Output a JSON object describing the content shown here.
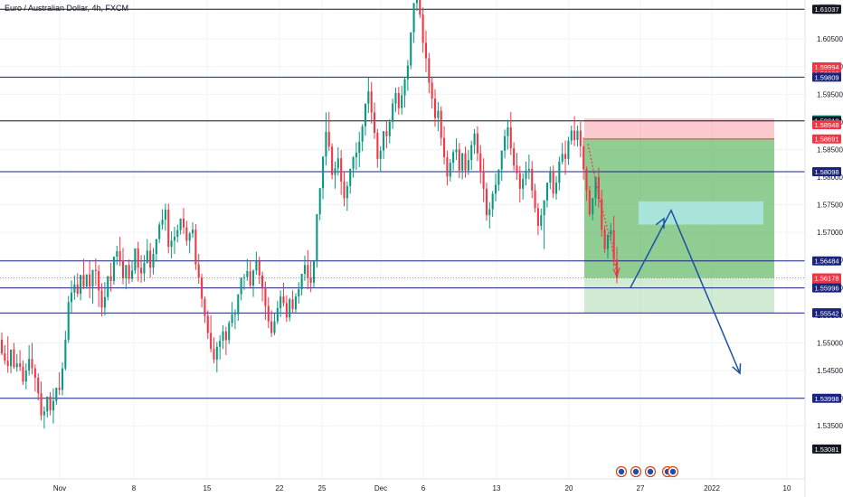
{
  "chart_data": {
    "type": "candlestick",
    "title": "Euro / Australian Dollar, 4h, FXCM",
    "currency": "AUD",
    "y_ticks": [
      "1.60500",
      "1.60000",
      "1.59500",
      "1.59000",
      "1.58500",
      "1.58000",
      "1.57500",
      "1.57000",
      "1.56500",
      "1.56000",
      "1.55500",
      "1.55000",
      "1.54500",
      "1.54000",
      "1.53500"
    ],
    "x_ticks": [
      "Nov",
      "8",
      "15",
      "22",
      "25",
      "Dec",
      "6",
      "13",
      "20",
      "27",
      "2022",
      "10"
    ],
    "ylim": [
      1.5315,
      1.6125
    ],
    "horizontal_lines": [
      {
        "price": 1.61037,
        "label": "1.61037",
        "color": "#131722"
      },
      {
        "price": 1.59809,
        "label": "1.59809",
        "color": "#1a237e"
      },
      {
        "price": 1.59018,
        "label": "1.59018",
        "color": "#131722"
      },
      {
        "price": 1.58098,
        "label": "1.58098",
        "color": "#1a237e"
      },
      {
        "price": 1.56484,
        "label": "1.56484",
        "color": "#1a237e"
      },
      {
        "price": 1.55996,
        "label": "1.55996",
        "color": "#1a237e"
      },
      {
        "price": 1.55542,
        "label": "1.55542",
        "color": "#1a237e"
      },
      {
        "price": 1.53998,
        "label": "1.53998",
        "color": "#1a237e"
      }
    ],
    "price_labels": [
      {
        "price": 1.61037,
        "text": "1.61037",
        "bg": "#131722"
      },
      {
        "price": 1.59994,
        "text": "1.59994",
        "bg": "#f23645"
      },
      {
        "price": 1.59868,
        "text": "1.59868",
        "bg": "#f23645"
      },
      {
        "price": 1.59809,
        "text": "1.59809",
        "bg": "#1a237e"
      },
      {
        "price": 1.59037,
        "text": "1.59037",
        "bg": "#089981"
      },
      {
        "price": 1.59018,
        "text": "1.59018",
        "bg": "#131722"
      },
      {
        "price": 1.58948,
        "text": "1.58948",
        "bg": "#f23645"
      },
      {
        "price": 1.58691,
        "text": "1.58691",
        "bg": "#f23645"
      },
      {
        "price": 1.58098,
        "text": "1.58098",
        "bg": "#1a237e"
      },
      {
        "price": 1.56484,
        "text": "1.56484",
        "bg": "#1a237e"
      },
      {
        "price": 1.56178,
        "text": "1.56178",
        "bg": "#f23645",
        "sub": "01:27:40"
      },
      {
        "price": 1.55996,
        "text": "1.55996",
        "bg": "#1a237e"
      },
      {
        "price": 1.55548,
        "text": "1.55548",
        "bg": "#089981"
      },
      {
        "price": 1.55542,
        "text": "1.55542",
        "bg": "#1a237e"
      },
      {
        "price": 1.53998,
        "text": "1.53998",
        "bg": "#1a237e"
      },
      {
        "price": 1.53081,
        "text": "1.53081",
        "bg": "#131722"
      }
    ],
    "current_price": 1.56178,
    "short_position": {
      "entry": 1.58691,
      "stop": 1.58948,
      "target": 1.55548
    },
    "highlight_zone": {
      "top": 1.57561,
      "bottom": 1.57142
    },
    "candles": [
      [
        1.5506,
        1.5519,
        1.5481,
        1.5478
      ],
      [
        1.5481,
        1.5496,
        1.5468,
        1.5461
      ],
      [
        1.5468,
        1.5512,
        1.5458,
        1.5446
      ],
      [
        1.5458,
        1.5483,
        1.5488,
        1.5445
      ],
      [
        1.5488,
        1.55,
        1.5456,
        1.5453
      ],
      [
        1.5456,
        1.548,
        1.5463,
        1.5448
      ],
      [
        1.5463,
        1.5487,
        1.5457,
        1.5449
      ],
      [
        1.5457,
        1.5468,
        1.543,
        1.5424
      ],
      [
        1.543,
        1.5463,
        1.545,
        1.5416
      ],
      [
        1.545,
        1.5496,
        1.5471,
        1.5441
      ],
      [
        1.5471,
        1.55,
        1.5454,
        1.5443
      ],
      [
        1.5454,
        1.5461,
        1.5437,
        1.5412
      ],
      [
        1.5437,
        1.5445,
        1.5409,
        1.5396
      ],
      [
        1.5409,
        1.543,
        1.5369,
        1.536
      ],
      [
        1.5369,
        1.5385,
        1.5376,
        1.5345
      ],
      [
        1.5376,
        1.5395,
        1.5403,
        1.5365
      ],
      [
        1.5403,
        1.5411,
        1.5378,
        1.5369
      ],
      [
        1.5378,
        1.5418,
        1.5395,
        1.5354
      ],
      [
        1.5395,
        1.5409,
        1.5419,
        1.5388
      ],
      [
        1.5419,
        1.5447,
        1.5415,
        1.5406
      ],
      [
        1.5415,
        1.5465,
        1.5454,
        1.5405
      ],
      [
        1.5454,
        1.5522,
        1.5506,
        1.545
      ],
      [
        1.5506,
        1.5585,
        1.5574,
        1.55
      ],
      [
        1.5574,
        1.5613,
        1.5591,
        1.5554
      ],
      [
        1.5591,
        1.5622,
        1.5606,
        1.5578
      ],
      [
        1.5606,
        1.5626,
        1.5589,
        1.5583
      ],
      [
        1.5589,
        1.5611,
        1.5623,
        1.5577
      ],
      [
        1.5623,
        1.5652,
        1.5602,
        1.5597
      ],
      [
        1.5602,
        1.562,
        1.5624,
        1.5598
      ],
      [
        1.5624,
        1.5648,
        1.5602,
        1.5581
      ],
      [
        1.5602,
        1.5632,
        1.5632,
        1.5571
      ],
      [
        1.5632,
        1.5653,
        1.563,
        1.5603
      ],
      [
        1.563,
        1.5641,
        1.5595,
        1.5565
      ],
      [
        1.5595,
        1.5608,
        1.5564,
        1.5548
      ],
      [
        1.5564,
        1.561,
        1.5583,
        1.555
      ],
      [
        1.5583,
        1.5604,
        1.5621,
        1.5577
      ],
      [
        1.5621,
        1.5645,
        1.5612,
        1.5593
      ],
      [
        1.5612,
        1.5648,
        1.5656,
        1.5605
      ],
      [
        1.5656,
        1.5676,
        1.5666,
        1.5641
      ],
      [
        1.5666,
        1.5692,
        1.5649,
        1.5639
      ],
      [
        1.5649,
        1.5672,
        1.5617,
        1.5606
      ],
      [
        1.5617,
        1.5636,
        1.5641,
        1.5597
      ],
      [
        1.5641,
        1.5651,
        1.5616,
        1.5607
      ],
      [
        1.5616,
        1.5649,
        1.5631,
        1.561
      ],
      [
        1.5631,
        1.5661,
        1.5671,
        1.5625
      ],
      [
        1.5671,
        1.5683,
        1.5636,
        1.5611
      ],
      [
        1.5636,
        1.5659,
        1.5626,
        1.5609
      ],
      [
        1.5626,
        1.5659,
        1.5645,
        1.5611
      ],
      [
        1.5645,
        1.5688,
        1.5667,
        1.5643
      ],
      [
        1.5667,
        1.5681,
        1.5636,
        1.5618
      ],
      [
        1.5636,
        1.5672,
        1.5661,
        1.5624
      ],
      [
        1.5661,
        1.5675,
        1.5688,
        1.5647
      ],
      [
        1.5688,
        1.5719,
        1.5714,
        1.5681
      ],
      [
        1.5714,
        1.5742,
        1.5723,
        1.5705
      ],
      [
        1.5723,
        1.5752,
        1.5741,
        1.5703
      ],
      [
        1.5741,
        1.5752,
        1.5674,
        1.5662
      ],
      [
        1.5674,
        1.5702,
        1.5685,
        1.5653
      ],
      [
        1.5685,
        1.571,
        1.5692,
        1.5661
      ],
      [
        1.5692,
        1.5714,
        1.5704,
        1.5682
      ],
      [
        1.5704,
        1.5723,
        1.5725,
        1.5696
      ],
      [
        1.5725,
        1.5744,
        1.5709,
        1.5697
      ],
      [
        1.5709,
        1.5721,
        1.5685,
        1.5676
      ],
      [
        1.5685,
        1.5701,
        1.5698,
        1.5662
      ],
      [
        1.5698,
        1.5718,
        1.5705,
        1.569
      ],
      [
        1.5705,
        1.5715,
        1.5642,
        1.5632
      ],
      [
        1.5642,
        1.5661,
        1.5618,
        1.5607
      ],
      [
        1.5618,
        1.5625,
        1.558,
        1.5564
      ],
      [
        1.558,
        1.5584,
        1.5549,
        1.5536
      ],
      [
        1.5549,
        1.5559,
        1.5518,
        1.5507
      ],
      [
        1.5518,
        1.555,
        1.5489,
        1.5483
      ],
      [
        1.5489,
        1.551,
        1.547,
        1.5463
      ],
      [
        1.547,
        1.5502,
        1.5493,
        1.5447
      ],
      [
        1.5493,
        1.5514,
        1.5504,
        1.547
      ],
      [
        1.5504,
        1.5532,
        1.5521,
        1.5489
      ],
      [
        1.5521,
        1.5529,
        1.5505,
        1.5478
      ],
      [
        1.5505,
        1.554,
        1.5536,
        1.5498
      ],
      [
        1.5536,
        1.5574,
        1.5552,
        1.5529
      ],
      [
        1.5552,
        1.5561,
        1.5552,
        1.5525
      ],
      [
        1.5552,
        1.5578,
        1.5588,
        1.554
      ],
      [
        1.5588,
        1.5617,
        1.5618,
        1.5577
      ],
      [
        1.5618,
        1.5625,
        1.5619,
        1.5596
      ],
      [
        1.5619,
        1.5652,
        1.563,
        1.5612
      ],
      [
        1.563,
        1.5647,
        1.5604,
        1.5598
      ],
      [
        1.5604,
        1.5633,
        1.5631,
        1.5583
      ],
      [
        1.5631,
        1.5665,
        1.5648,
        1.5623
      ],
      [
        1.5648,
        1.5656,
        1.5622,
        1.5607
      ],
      [
        1.5622,
        1.5629,
        1.5601,
        1.5575
      ],
      [
        1.5601,
        1.5611,
        1.5567,
        1.5542
      ],
      [
        1.5567,
        1.5583,
        1.5539,
        1.5527
      ],
      [
        1.5539,
        1.5559,
        1.5518,
        1.5511
      ],
      [
        1.5518,
        1.5553,
        1.5539,
        1.5514
      ],
      [
        1.5539,
        1.5576,
        1.5563,
        1.5534
      ],
      [
        1.5563,
        1.5595,
        1.5584,
        1.5547
      ],
      [
        1.5584,
        1.5609,
        1.5572,
        1.5566
      ],
      [
        1.5572,
        1.5586,
        1.5546,
        1.5538
      ],
      [
        1.5546,
        1.5582,
        1.5579,
        1.5539
      ],
      [
        1.5579,
        1.5595,
        1.5561,
        1.5554
      ],
      [
        1.5561,
        1.559,
        1.5584,
        1.5555
      ],
      [
        1.5584,
        1.561,
        1.5597,
        1.5571
      ],
      [
        1.5597,
        1.5619,
        1.5625,
        1.5586
      ],
      [
        1.5625,
        1.5658,
        1.5641,
        1.5612
      ],
      [
        1.5641,
        1.5668,
        1.5618,
        1.5597
      ],
      [
        1.5618,
        1.5647,
        1.5609,
        1.5592
      ],
      [
        1.5609,
        1.5633,
        1.5648,
        1.5599
      ],
      [
        1.5648,
        1.5679,
        1.5733,
        1.5636
      ],
      [
        1.5733,
        1.5769,
        1.578,
        1.5722
      ],
      [
        1.578,
        1.5838,
        1.5837,
        1.576
      ],
      [
        1.5837,
        1.5917,
        1.5882,
        1.5821
      ],
      [
        1.5882,
        1.5918,
        1.5855,
        1.5847
      ],
      [
        1.5855,
        1.5861,
        1.5804,
        1.5796
      ],
      [
        1.5804,
        1.5828,
        1.5816,
        1.5779
      ],
      [
        1.5816,
        1.5854,
        1.5834,
        1.5803
      ],
      [
        1.5834,
        1.5849,
        1.5792,
        1.5768
      ],
      [
        1.5792,
        1.581,
        1.5762,
        1.5747
      ],
      [
        1.5762,
        1.5792,
        1.5784,
        1.5739
      ],
      [
        1.5784,
        1.5812,
        1.5815,
        1.577
      ],
      [
        1.5815,
        1.5838,
        1.5836,
        1.5799
      ],
      [
        1.5836,
        1.5863,
        1.5844,
        1.5813
      ],
      [
        1.5844,
        1.5882,
        1.5864,
        1.5818
      ],
      [
        1.5864,
        1.5896,
        1.5892,
        1.5847
      ],
      [
        1.5892,
        1.5924,
        1.5933,
        1.5875
      ],
      [
        1.5933,
        1.598,
        1.5955,
        1.5916
      ],
      [
        1.5955,
        1.5972,
        1.5917,
        1.5897
      ],
      [
        1.5917,
        1.5935,
        1.588,
        1.5869
      ],
      [
        1.588,
        1.5887,
        1.5833,
        1.5817
      ],
      [
        1.5833,
        1.5856,
        1.5848,
        1.5809
      ],
      [
        1.5848,
        1.5872,
        1.5883,
        1.5833
      ],
      [
        1.5883,
        1.5901,
        1.5874,
        1.5852
      ],
      [
        1.5874,
        1.5905,
        1.59,
        1.5861
      ],
      [
        1.59,
        1.5942,
        1.5933,
        1.5887
      ],
      [
        1.5933,
        1.5962,
        1.5952,
        1.5918
      ],
      [
        1.5952,
        1.5963,
        1.5925,
        1.5913
      ],
      [
        1.5925,
        1.5965,
        1.5948,
        1.5913
      ],
      [
        1.5948,
        1.5981,
        1.5977,
        1.5926
      ],
      [
        1.5977,
        1.6012,
        1.6002,
        1.5956
      ],
      [
        1.6002,
        1.6045,
        1.6062,
        1.5995
      ],
      [
        1.6062,
        1.6114,
        1.6115,
        1.6043
      ],
      [
        1.6115,
        1.618,
        1.6124,
        1.6101
      ],
      [
        1.6124,
        1.6148,
        1.6094,
        1.6088
      ],
      [
        1.6094,
        1.6107,
        1.6043,
        1.6025
      ],
      [
        1.6043,
        1.6065,
        1.6015,
        1.599
      ],
      [
        1.6015,
        1.6025,
        1.5971,
        1.5952
      ],
      [
        1.5971,
        1.598,
        1.5942,
        1.5924
      ],
      [
        1.5942,
        1.5959,
        1.5907,
        1.5891
      ],
      [
        1.5907,
        1.5936,
        1.592,
        1.5883
      ],
      [
        1.592,
        1.5928,
        1.5871,
        1.5857
      ],
      [
        1.5871,
        1.5892,
        1.5836,
        1.5823
      ],
      [
        1.5836,
        1.5848,
        1.5801,
        1.5785
      ],
      [
        1.5801,
        1.5833,
        1.5826,
        1.5792
      ],
      [
        1.5826,
        1.585,
        1.5845,
        1.5812
      ],
      [
        1.5845,
        1.587,
        1.585,
        1.5831
      ],
      [
        1.585,
        1.5862,
        1.5812,
        1.5798
      ],
      [
        1.5812,
        1.5844,
        1.5843,
        1.5796
      ],
      [
        1.5843,
        1.5855,
        1.5812,
        1.5799
      ],
      [
        1.5812,
        1.5849,
        1.5831,
        1.5804
      ],
      [
        1.5831,
        1.5866,
        1.5858,
        1.5813
      ],
      [
        1.5858,
        1.5887,
        1.5879,
        1.5842
      ],
      [
        1.5879,
        1.5892,
        1.5843,
        1.5829
      ],
      [
        1.5843,
        1.5858,
        1.5811,
        1.5788
      ],
      [
        1.5811,
        1.5834,
        1.5779,
        1.5755
      ],
      [
        1.5779,
        1.579,
        1.5731,
        1.5721
      ],
      [
        1.5731,
        1.5755,
        1.5742,
        1.5707
      ],
      [
        1.5742,
        1.5775,
        1.577,
        1.5728
      ],
      [
        1.577,
        1.5807,
        1.5786,
        1.5756
      ],
      [
        1.5786,
        1.5811,
        1.5814,
        1.5775
      ],
      [
        1.5814,
        1.5835,
        1.5848,
        1.5793
      ],
      [
        1.5848,
        1.5886,
        1.5874,
        1.5834
      ],
      [
        1.5874,
        1.5904,
        1.589,
        1.585
      ],
      [
        1.589,
        1.5918,
        1.5852,
        1.584
      ],
      [
        1.5852,
        1.5863,
        1.5821,
        1.5812
      ],
      [
        1.5821,
        1.5844,
        1.5807,
        1.5795
      ],
      [
        1.5807,
        1.582,
        1.5779,
        1.5754
      ],
      [
        1.5779,
        1.5807,
        1.5797,
        1.5759
      ],
      [
        1.5797,
        1.5828,
        1.5812,
        1.5785
      ],
      [
        1.5812,
        1.5841,
        1.5815,
        1.5796
      ],
      [
        1.5815,
        1.5829,
        1.5776,
        1.5762
      ],
      [
        1.5776,
        1.5788,
        1.5744,
        1.5736
      ],
      [
        1.5744,
        1.5753,
        1.5712,
        1.5695
      ],
      [
        1.5712,
        1.5743,
        1.5731,
        1.5704
      ],
      [
        1.5731,
        1.5753,
        1.5758,
        1.567
      ],
      [
        1.5758,
        1.5772,
        1.579,
        1.5745
      ],
      [
        1.579,
        1.5819,
        1.581,
        1.5778
      ],
      [
        1.581,
        1.5821,
        1.577,
        1.5762
      ],
      [
        1.577,
        1.5802,
        1.579,
        1.5759
      ],
      [
        1.579,
        1.5837,
        1.5828,
        1.5776
      ],
      [
        1.5828,
        1.5862,
        1.5842,
        1.5823
      ],
      [
        1.5842,
        1.5866,
        1.5833,
        1.5804
      ],
      [
        1.5833,
        1.5873,
        1.5866,
        1.5822
      ],
      [
        1.5866,
        1.5893,
        1.5884,
        1.5859
      ],
      [
        1.5884,
        1.591,
        1.5867,
        1.5856
      ],
      [
        1.5867,
        1.5893,
        1.5884,
        1.5855
      ],
      [
        1.5884,
        1.59,
        1.5856,
        1.5836
      ],
      [
        1.5856,
        1.5872,
        1.5814,
        1.5795
      ],
      [
        1.5814,
        1.5819,
        1.5776,
        1.5757
      ],
      [
        1.5776,
        1.5784,
        1.5733,
        1.5729
      ],
      [
        1.5733,
        1.5746,
        1.5762,
        1.5722
      ],
      [
        1.5762,
        1.5787,
        1.58,
        1.5748
      ],
      [
        1.58,
        1.5817,
        1.576,
        1.5745
      ],
      [
        1.576,
        1.5777,
        1.5705,
        1.5692
      ],
      [
        1.5705,
        1.5713,
        1.567,
        1.5663
      ],
      [
        1.567,
        1.5683,
        1.5696,
        1.5653
      ],
      [
        1.5696,
        1.5717,
        1.5704,
        1.5684
      ],
      [
        1.5704,
        1.573,
        1.5651,
        1.5639
      ],
      [
        1.5651,
        1.5674,
        1.5618,
        1.5608
      ]
    ],
    "drawn_path": [
      {
        "x": "22",
        "price": 1.56
      },
      {
        "x": "2022",
        "price": 1.574
      },
      {
        "x": "10",
        "price": 1.5445
      }
    ],
    "news_event_count": 4
  }
}
